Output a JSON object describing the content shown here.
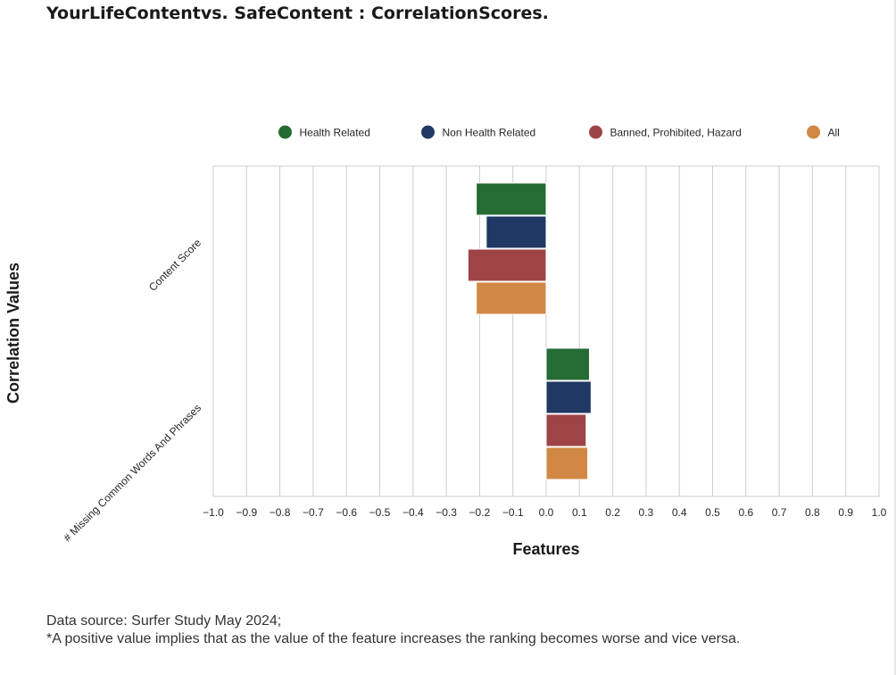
{
  "title": "YourLifeContentvs. SafeContent :  CorrelationScores.",
  "footnote": {
    "line1": "Data source: Surfer Study May 2024;",
    "line2": "*A positive value implies that as the value of the feature increases the ranking becomes worse and vice versa."
  },
  "chart_data": {
    "type": "bar",
    "orientation": "horizontal",
    "title": "YourLifeContentvs. SafeContent :  CorrelationScores.",
    "xlabel": "Features",
    "ylabel": "Correlation Values",
    "xlim": [
      -1.0,
      1.0
    ],
    "xticks": [
      "−1.0",
      "−0.9",
      "−0.8",
      "−0.7",
      "−0.6",
      "−0.5",
      "−0.4",
      "−0.3",
      "−0.2",
      "−0.1",
      "0.0",
      "0.1",
      "0.2",
      "0.3",
      "0.4",
      "0.5",
      "0.6",
      "0.7",
      "0.8",
      "0.9",
      "1.0"
    ],
    "categories": [
      "Content Score",
      "# Missing Common Words And Phrases"
    ],
    "grid": "vertical",
    "legend_position": "top-center",
    "series": [
      {
        "name": "Health Related",
        "color": "#256b34",
        "values": [
          -0.21,
          0.13
        ]
      },
      {
        "name": "Non Health Related",
        "color": "#1f3864",
        "values": [
          -0.18,
          0.135
        ]
      },
      {
        "name": "Banned, Prohibited, Hazard",
        "color": "#9e4446",
        "values": [
          -0.235,
          0.12
        ]
      },
      {
        "name": "All",
        "color": "#d08844",
        "values": [
          -0.21,
          0.125
        ]
      }
    ]
  }
}
